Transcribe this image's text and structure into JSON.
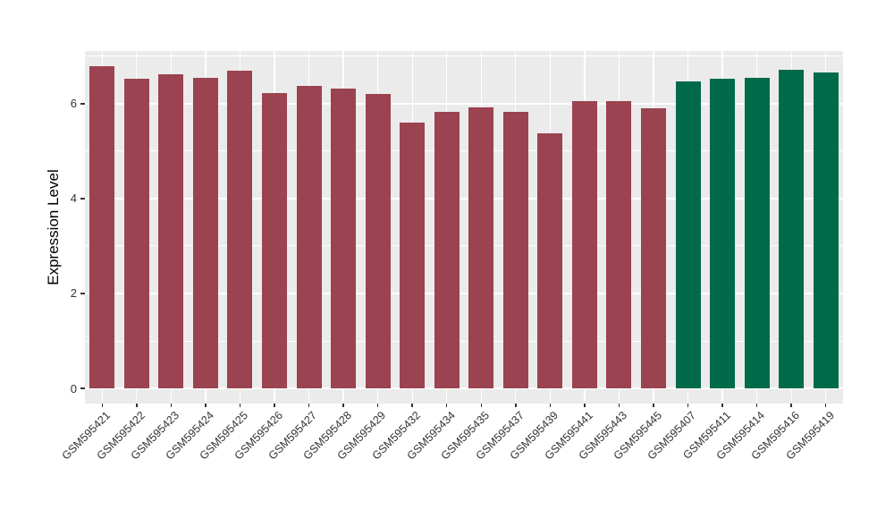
{
  "chart_data": {
    "type": "bar",
    "title": "",
    "xlabel": "",
    "ylabel": "Expression Level",
    "categories": [
      "GSM595421",
      "GSM595422",
      "GSM595423",
      "GSM595424",
      "GSM595425",
      "GSM595426",
      "GSM595427",
      "GSM595428",
      "GSM595429",
      "GSM595432",
      "GSM595434",
      "GSM595435",
      "GSM595437",
      "GSM595439",
      "GSM595441",
      "GSM595443",
      "GSM595445",
      "GSM595407",
      "GSM595411",
      "GSM595414",
      "GSM595416",
      "GSM595419"
    ],
    "values": [
      6.79,
      6.52,
      6.62,
      6.55,
      6.7,
      6.22,
      6.38,
      6.31,
      6.21,
      5.61,
      5.82,
      5.92,
      5.83,
      5.37,
      6.05,
      6.06,
      5.91,
      6.47,
      6.52,
      6.55,
      6.72,
      6.65
    ],
    "groups": [
      "group1",
      "group1",
      "group1",
      "group1",
      "group1",
      "group1",
      "group1",
      "group1",
      "group1",
      "group1",
      "group1",
      "group1",
      "group1",
      "group1",
      "group1",
      "group1",
      "group1",
      "group2",
      "group2",
      "group2",
      "group2",
      "group2"
    ],
    "group_colors": {
      "group1": "#9B4350",
      "group2": "#006A4B"
    },
    "yticks": [
      0,
      2,
      4,
      6
    ],
    "ytick_labels": [
      "0",
      "2",
      "4",
      "6"
    ],
    "minor_gridlines": [
      1,
      3,
      5,
      7
    ],
    "ylim": [
      -0.32,
      7.11
    ],
    "grid": "on",
    "legend_position": "none",
    "panel_background": "#EBEBEB",
    "gridline_color": "#FFFFFF",
    "axis_text_color": "#333333"
  }
}
